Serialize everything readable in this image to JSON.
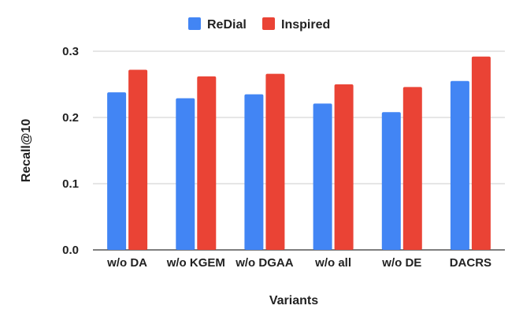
{
  "chart_data": {
    "type": "bar",
    "categories": [
      "w/o DA",
      "w/o KGEM",
      "w/o DGAA",
      "w/o all",
      "w/o DE",
      "DACRS"
    ],
    "series": [
      {
        "name": "ReDial",
        "color": "#4285f4",
        "values": [
          0.238,
          0.229,
          0.235,
          0.221,
          0.208,
          0.255
        ]
      },
      {
        "name": "Inspired",
        "color": "#ea4335",
        "values": [
          0.272,
          0.262,
          0.266,
          0.25,
          0.246,
          0.292
        ]
      }
    ],
    "yticks": [
      "0.0",
      "0.1",
      "0.2",
      "0.3"
    ],
    "ylim": [
      0,
      0.32
    ],
    "xlabel": "Variants",
    "ylabel": "Recall@10",
    "grid": true,
    "legend": "top-center"
  }
}
